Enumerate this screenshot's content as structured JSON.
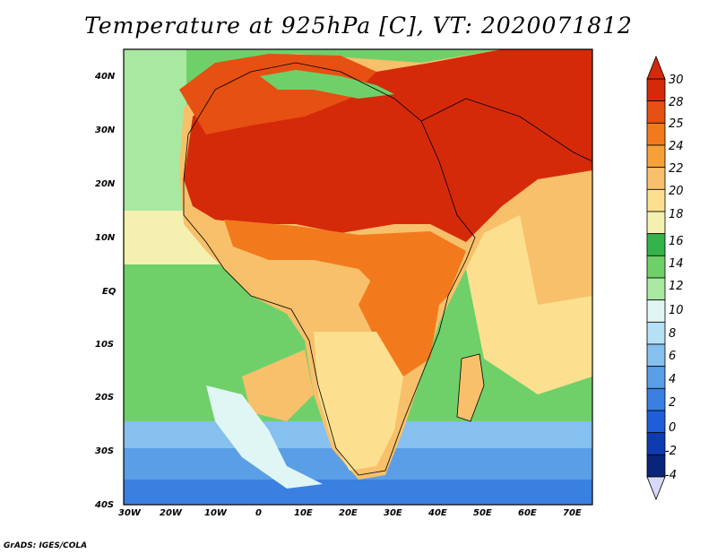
{
  "title": "Temperature at 925hPa [C], VT: 2020071812",
  "credit": "GrADS: IGES/COLA",
  "map": {
    "lon_ticks": [
      "30W",
      "20W",
      "10W",
      "0",
      "10E",
      "20E",
      "30E",
      "40E",
      "50E",
      "60E",
      "70E"
    ],
    "lat_ticks": [
      "40N",
      "30N",
      "20N",
      "10N",
      "EQ",
      "10S",
      "20S",
      "30S",
      "40S"
    ],
    "lon_range": [
      -30,
      75
    ],
    "lat_range": [
      -40,
      45
    ]
  },
  "colorbar": {
    "labels": [
      "30",
      "28",
      "25",
      "24",
      "22",
      "20",
      "18",
      "16",
      "14",
      "12",
      "10",
      "8",
      "6",
      "4",
      "2",
      "0",
      "-2",
      "-4"
    ],
    "colors": [
      "#d42a0a",
      "#e65012",
      "#f27a1d",
      "#f7a03a",
      "#f8c06a",
      "#fde08f",
      "#f4f0b0",
      "#33b34a",
      "#6fd06a",
      "#a8e8a0",
      "#e0f6f4",
      "#b6e0f6",
      "#86c0ee",
      "#5a9ee6",
      "#3a80e0",
      "#1e5ed8",
      "#0e3cb0",
      "#08257a"
    ],
    "top_arrow_color": "#d42a0a",
    "bottom_arrow_color": "#d8d8f8"
  },
  "colors": {
    "hot": "#d42a0a",
    "warm": "#f27a1d",
    "mild": "#fde08f",
    "green": "#6fd06a",
    "cool": "#a8e8a0",
    "cold": "#86c0ee",
    "frigid": "#3a80e0"
  }
}
